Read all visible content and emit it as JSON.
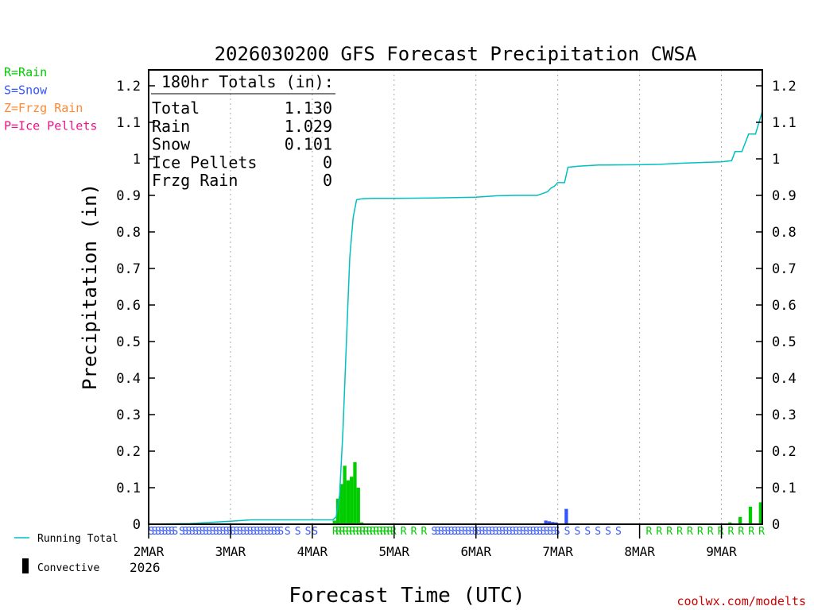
{
  "chart_data": {
    "type": "bar+line",
    "title": "2026030200 GFS Forecast Precipitation CWSA",
    "xlabel": "Forecast Time (UTC)",
    "ylabel": "Precipitation (in)",
    "ylim": [
      0,
      1.25
    ],
    "y_ticks": [
      0,
      0.1,
      0.2,
      0.3,
      0.4,
      0.5,
      0.6,
      0.7,
      0.8,
      0.9,
      1,
      1.1,
      1.2
    ],
    "y_tick_labels": [
      "0",
      "0.1",
      "0.2",
      "0.3",
      "0.4",
      "0.5",
      "0.6",
      "0.7",
      "0.8",
      "0.9",
      "1",
      "1.1",
      "1.2"
    ],
    "x_unit": "forecast hours",
    "xlim": [
      0,
      180
    ],
    "x_ticks": [
      {
        "hour": 0,
        "label": "2MAR"
      },
      {
        "hour": 24,
        "label": "3MAR"
      },
      {
        "hour": 48,
        "label": "4MAR"
      },
      {
        "hour": 72,
        "label": "5MAR"
      },
      {
        "hour": 96,
        "label": "6MAR"
      },
      {
        "hour": 120,
        "label": "7MAR"
      },
      {
        "hour": 144,
        "label": "8MAR"
      },
      {
        "hour": 168,
        "label": "9MAR"
      }
    ],
    "x_year_label": "2026",
    "grid": "vertical dotted at each day",
    "legend_ptype": [
      {
        "code": "R",
        "text": "R=Rain",
        "color": "#00cc00"
      },
      {
        "code": "S",
        "text": "S=Snow",
        "color": "#3355ff"
      },
      {
        "code": "Z",
        "text": "Z=Frzg Rain",
        "color": "#ff8833"
      },
      {
        "code": "P",
        "text": "P=Ice Pellets",
        "color": "#ee1188"
      }
    ],
    "legend_series": [
      {
        "text": "Running Total",
        "color": "#00c0c0"
      },
      {
        "text": "Convective",
        "color": "#000000"
      }
    ],
    "totals_box": {
      "heading": "180hr Totals (in):",
      "rows": [
        {
          "label": "Total",
          "value": "1.130"
        },
        {
          "label": "Rain",
          "value": "1.029"
        },
        {
          "label": "Snow",
          "value": "0.101"
        },
        {
          "label": "Ice Pellets",
          "value": "0"
        },
        {
          "label": "Frzg Rain",
          "value": "0"
        }
      ]
    },
    "bars": [
      {
        "hour": 55,
        "value": 0.01,
        "type": "R"
      },
      {
        "hour": 56,
        "value": 0.07,
        "type": "R"
      },
      {
        "hour": 57,
        "value": 0.11,
        "type": "R"
      },
      {
        "hour": 58,
        "value": 0.16,
        "type": "R"
      },
      {
        "hour": 59,
        "value": 0.12,
        "type": "R"
      },
      {
        "hour": 60,
        "value": 0.13,
        "type": "R"
      },
      {
        "hour": 61,
        "value": 0.17,
        "type": "R"
      },
      {
        "hour": 62,
        "value": 0.1,
        "type": "R"
      },
      {
        "hour": 63,
        "value": 0.005,
        "type": "R"
      },
      {
        "hour": 117,
        "value": 0.01,
        "type": "S"
      },
      {
        "hour": 118,
        "value": 0.008,
        "type": "S"
      },
      {
        "hour": 119,
        "value": 0.006,
        "type": "S"
      },
      {
        "hour": 120,
        "value": 0.005,
        "type": "S"
      },
      {
        "hour": 123,
        "value": 0.042,
        "type": "S"
      },
      {
        "hour": 171,
        "value": 0.005,
        "type": "R"
      },
      {
        "hour": 174,
        "value": 0.02,
        "type": "R"
      },
      {
        "hour": 177,
        "value": 0.048,
        "type": "R"
      },
      {
        "hour": 180,
        "value": 0.06,
        "type": "R"
      }
    ],
    "running_total": {
      "hours": [
        0,
        12,
        18,
        24,
        30,
        36,
        42,
        48,
        54,
        55,
        56,
        57,
        58,
        59,
        60,
        61,
        62,
        63,
        66,
        72,
        84,
        96,
        102,
        108,
        114,
        117,
        118,
        119,
        120,
        122,
        123,
        126,
        132,
        144,
        150,
        156,
        162,
        168,
        171,
        172,
        174,
        176,
        178,
        180
      ],
      "values": [
        0,
        0.002,
        0.005,
        0.008,
        0.012,
        0.012,
        0.012,
        0.012,
        0.012,
        0.02,
        0.08,
        0.26,
        0.5,
        0.73,
        0.84,
        0.888,
        0.89,
        0.891,
        0.892,
        0.892,
        0.893,
        0.895,
        0.899,
        0.9,
        0.9,
        0.91,
        0.92,
        0.925,
        0.935,
        0.935,
        0.977,
        0.98,
        0.983,
        0.984,
        0.985,
        0.988,
        0.99,
        0.992,
        0.995,
        1.02,
        1.02,
        1.068,
        1.068,
        1.13
      ]
    },
    "ptype_marks": [
      {
        "hour": 1,
        "code": "S"
      },
      {
        "hour": 2,
        "code": "S"
      },
      {
        "hour": 3,
        "code": "S"
      },
      {
        "hour": 4,
        "code": "S"
      },
      {
        "hour": 5,
        "code": "S"
      },
      {
        "hour": 6,
        "code": "S"
      },
      {
        "hour": 7,
        "code": "S"
      },
      {
        "hour": 8,
        "code": "S"
      },
      {
        "hour": 10,
        "code": "S"
      },
      {
        "hour": 11,
        "code": "S"
      },
      {
        "hour": 12,
        "code": "S"
      },
      {
        "hour": 13,
        "code": "S"
      },
      {
        "hour": 14,
        "code": "S"
      },
      {
        "hour": 15,
        "code": "S"
      },
      {
        "hour": 16,
        "code": "S"
      },
      {
        "hour": 17,
        "code": "S"
      },
      {
        "hour": 18,
        "code": "S"
      },
      {
        "hour": 19,
        "code": "S"
      },
      {
        "hour": 20,
        "code": "S"
      },
      {
        "hour": 21,
        "code": "S"
      },
      {
        "hour": 22,
        "code": "S"
      },
      {
        "hour": 23,
        "code": "S"
      },
      {
        "hour": 24,
        "code": "S"
      },
      {
        "hour": 25,
        "code": "S"
      },
      {
        "hour": 26,
        "code": "S"
      },
      {
        "hour": 27,
        "code": "S"
      },
      {
        "hour": 28,
        "code": "S"
      },
      {
        "hour": 29,
        "code": "S"
      },
      {
        "hour": 30,
        "code": "S"
      },
      {
        "hour": 31,
        "code": "S"
      },
      {
        "hour": 32,
        "code": "S"
      },
      {
        "hour": 33,
        "code": "S"
      },
      {
        "hour": 34,
        "code": "S"
      },
      {
        "hour": 35,
        "code": "S"
      },
      {
        "hour": 36,
        "code": "S"
      },
      {
        "hour": 37,
        "code": "S"
      },
      {
        "hour": 38,
        "code": "S"
      },
      {
        "hour": 39,
        "code": "S"
      },
      {
        "hour": 41,
        "code": "S"
      },
      {
        "hour": 44,
        "code": "S"
      },
      {
        "hour": 47,
        "code": "S"
      },
      {
        "hour": 49,
        "code": "S"
      },
      {
        "hour": 55,
        "code": "R"
      },
      {
        "hour": 56,
        "code": "R"
      },
      {
        "hour": 57,
        "code": "R"
      },
      {
        "hour": 58,
        "code": "R"
      },
      {
        "hour": 59,
        "code": "R"
      },
      {
        "hour": 60,
        "code": "R"
      },
      {
        "hour": 61,
        "code": "R"
      },
      {
        "hour": 62,
        "code": "R"
      },
      {
        "hour": 63,
        "code": "R"
      },
      {
        "hour": 64,
        "code": "R"
      },
      {
        "hour": 65,
        "code": "R"
      },
      {
        "hour": 66,
        "code": "R"
      },
      {
        "hour": 67,
        "code": "R"
      },
      {
        "hour": 68,
        "code": "R"
      },
      {
        "hour": 69,
        "code": "R"
      },
      {
        "hour": 70,
        "code": "R"
      },
      {
        "hour": 71,
        "code": "R"
      },
      {
        "hour": 72,
        "code": "R"
      },
      {
        "hour": 75,
        "code": "R"
      },
      {
        "hour": 78,
        "code": "R"
      },
      {
        "hour": 81,
        "code": "R"
      },
      {
        "hour": 84,
        "code": "S"
      },
      {
        "hour": 85,
        "code": "S"
      },
      {
        "hour": 86,
        "code": "S"
      },
      {
        "hour": 87,
        "code": "S"
      },
      {
        "hour": 88,
        "code": "S"
      },
      {
        "hour": 89,
        "code": "S"
      },
      {
        "hour": 90,
        "code": "S"
      },
      {
        "hour": 91,
        "code": "S"
      },
      {
        "hour": 92,
        "code": "S"
      },
      {
        "hour": 93,
        "code": "S"
      },
      {
        "hour": 94,
        "code": "S"
      },
      {
        "hour": 95,
        "code": "S"
      },
      {
        "hour": 96,
        "code": "S"
      },
      {
        "hour": 97,
        "code": "S"
      },
      {
        "hour": 98,
        "code": "S"
      },
      {
        "hour": 99,
        "code": "S"
      },
      {
        "hour": 100,
        "code": "S"
      },
      {
        "hour": 101,
        "code": "S"
      },
      {
        "hour": 102,
        "code": "S"
      },
      {
        "hour": 103,
        "code": "S"
      },
      {
        "hour": 104,
        "code": "S"
      },
      {
        "hour": 105,
        "code": "S"
      },
      {
        "hour": 106,
        "code": "S"
      },
      {
        "hour": 107,
        "code": "S"
      },
      {
        "hour": 108,
        "code": "S"
      },
      {
        "hour": 109,
        "code": "S"
      },
      {
        "hour": 110,
        "code": "S"
      },
      {
        "hour": 111,
        "code": "S"
      },
      {
        "hour": 112,
        "code": "S"
      },
      {
        "hour": 113,
        "code": "S"
      },
      {
        "hour": 114,
        "code": "S"
      },
      {
        "hour": 115,
        "code": "S"
      },
      {
        "hour": 116,
        "code": "S"
      },
      {
        "hour": 117,
        "code": "S"
      },
      {
        "hour": 118,
        "code": "S"
      },
      {
        "hour": 119,
        "code": "S"
      },
      {
        "hour": 120,
        "code": "S"
      },
      {
        "hour": 123,
        "code": "S"
      },
      {
        "hour": 126,
        "code": "S"
      },
      {
        "hour": 129,
        "code": "S"
      },
      {
        "hour": 132,
        "code": "S"
      },
      {
        "hour": 135,
        "code": "S"
      },
      {
        "hour": 138,
        "code": "S"
      },
      {
        "hour": 147,
        "code": "R"
      },
      {
        "hour": 150,
        "code": "R"
      },
      {
        "hour": 153,
        "code": "R"
      },
      {
        "hour": 156,
        "code": "R"
      },
      {
        "hour": 159,
        "code": "R"
      },
      {
        "hour": 162,
        "code": "R"
      },
      {
        "hour": 165,
        "code": "R"
      },
      {
        "hour": 168,
        "code": "R"
      },
      {
        "hour": 171,
        "code": "R"
      },
      {
        "hour": 174,
        "code": "R"
      },
      {
        "hour": 177,
        "code": "R"
      },
      {
        "hour": 180,
        "code": "R"
      }
    ],
    "credit": "coolwx.com/modelts"
  }
}
